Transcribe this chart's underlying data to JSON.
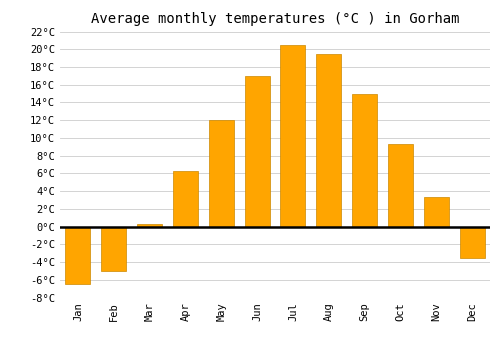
{
  "title": "Average monthly temperatures (°C ) in Gorham",
  "months": [
    "Jan",
    "Feb",
    "Mar",
    "Apr",
    "May",
    "Jun",
    "Jul",
    "Aug",
    "Sep",
    "Oct",
    "Nov",
    "Dec"
  ],
  "values": [
    -6.5,
    -5.0,
    0.3,
    6.3,
    12.0,
    17.0,
    20.5,
    19.5,
    15.0,
    9.3,
    3.3,
    -3.5
  ],
  "bar_color": "#FFA500",
  "bar_edge_color": "#CC8800",
  "ylim": [
    -8,
    22
  ],
  "yticks": [
    -8,
    -6,
    -4,
    -2,
    0,
    2,
    4,
    6,
    8,
    10,
    12,
    14,
    16,
    18,
    20,
    22
  ],
  "grid_color": "#cccccc",
  "background_color": "#ffffff",
  "title_fontsize": 10,
  "tick_fontsize": 7.5,
  "font_family": "monospace",
  "bar_width": 0.7
}
